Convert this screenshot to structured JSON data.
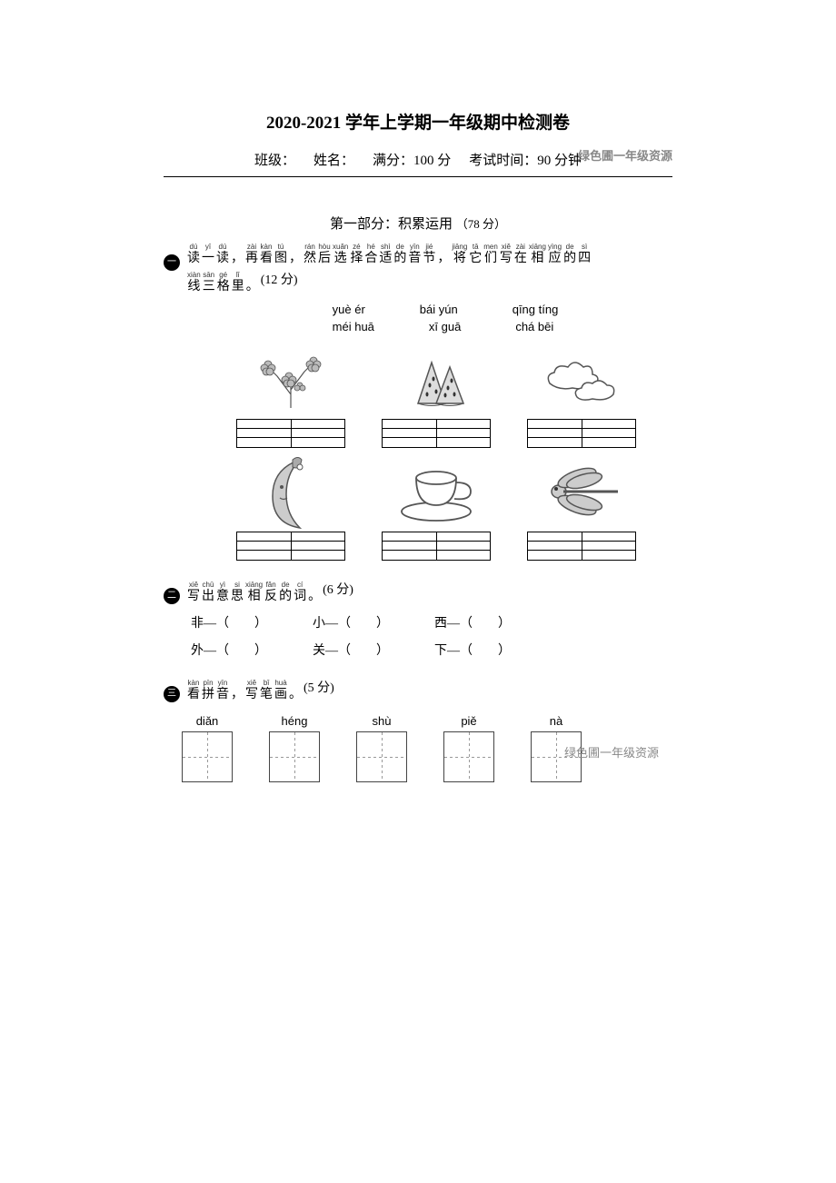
{
  "title": "2020-2021 学年上学期一年级期中检测卷",
  "header": {
    "class_label": "班级：",
    "name_label": "姓名：",
    "score_label": "满分：100 分",
    "time_label": "考试时间：90 分钟",
    "watermark": "绿色圃一年级资源"
  },
  "part1": {
    "title_main": "第一部分：积累运用",
    "title_points": "（78 分）"
  },
  "section1": {
    "num": "一",
    "pinyin_line1": [
      "dú",
      "yī",
      "dú",
      "",
      "zài",
      "kàn",
      "tú",
      "",
      "rán",
      "hòu",
      "xuǎn",
      "zé",
      "hé",
      "shì",
      "de",
      "yīn",
      "jié",
      "",
      "jiāng",
      "tā",
      "men",
      "xiě",
      "zài",
      "xiāng",
      "yìng",
      "de",
      "sì"
    ],
    "chars_line1": "读一读，再看图，然后选择合适的音节，将它们写在相应的四",
    "pinyin_line2": [
      "xiàn",
      "sān",
      "gé",
      "lǐ"
    ],
    "chars_line2": "线三格里。",
    "points": "(12 分)",
    "bank_row1": [
      "yuè ér",
      "bái yún",
      "qīng tíng"
    ],
    "bank_row2": [
      "méi huā",
      "xī guā",
      "chá bēi"
    ]
  },
  "section2": {
    "num": "二",
    "pinyin": [
      "xiě",
      "chū",
      "yì",
      "si",
      "xiāng",
      "fǎn",
      "de",
      "cí"
    ],
    "chars": "写出意思相反的词。",
    "points": "(6 分)",
    "row1": [
      "非—（　　）",
      "小—（　　）",
      "西—（　　）"
    ],
    "row2": [
      "外—（　　）",
      "关—（　　）",
      "下—（　　）"
    ]
  },
  "section3": {
    "num": "三",
    "pinyin": [
      "kàn",
      "pīn",
      "yīn",
      "",
      "xiě",
      "bǐ",
      "huà"
    ],
    "chars": "看拼音，写笔画。",
    "points": "(5 分)",
    "strokes": [
      "diǎn",
      "héng",
      "shù",
      "piě",
      "nà"
    ]
  },
  "watermark_bottom": "绿色圃一年级资源"
}
